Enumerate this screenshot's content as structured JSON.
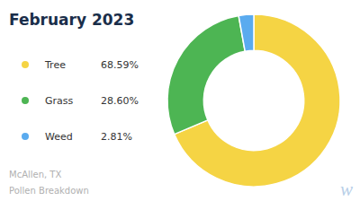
{
  "chart_data": {
    "type": "pie",
    "title": "February 2023",
    "categories": [
      "Tree",
      "Grass",
      "Weed"
    ],
    "values": [
      68.59,
      28.6,
      2.81
    ],
    "value_labels": [
      "68.59%",
      "28.60%",
      "2.81%"
    ],
    "colors": [
      "#f5d444",
      "#4db553",
      "#5aabef"
    ],
    "legend": "left",
    "annotations": [
      "McAllen, TX",
      "Pollen Breakdown",
      "w"
    ]
  }
}
